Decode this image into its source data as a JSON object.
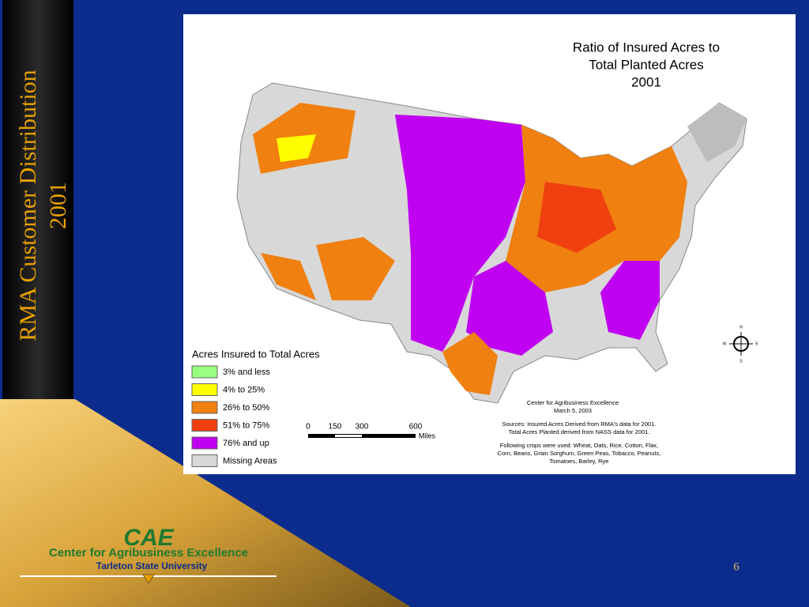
{
  "sidebar": {
    "title": "RMA Customer Distribution",
    "year": "2001"
  },
  "map": {
    "title": [
      "Ratio of Insured Acres to",
      "Total Planted Acres",
      "2001"
    ],
    "legend": {
      "title": "Acres Insured to Total Acres",
      "items": [
        {
          "label": "3% and less",
          "color": "#99ff80"
        },
        {
          "label": "4% to 25%",
          "color": "#ffff00"
        },
        {
          "label": "26% to 50%",
          "color": "#f08010"
        },
        {
          "label": "51% to 75%",
          "color": "#f04010"
        },
        {
          "label": "76% and up",
          "color": "#c000f0"
        },
        {
          "label": "Missing Areas",
          "color": "#d8d8d8"
        }
      ]
    },
    "scale": {
      "ticks": [
        0,
        150,
        300,
        600
      ],
      "unit": "Miles"
    },
    "compass": {
      "n": "N",
      "e": "E",
      "s": "S",
      "w": "W"
    },
    "credits": [
      "Center for Agribusiness Excellence",
      "March 5, 2003"
    ],
    "notes": [
      "Sources: Insured Acres Derived from RMA's data for 2001.",
      "Total Acres Planted derived from NASS data for 2001.",
      "Following crops were used: Wheat, Oats, Rice, Cotton, Flax,",
      "Corn, Beans, Grain Sorghum, Green Peas, Tobacco, Peanuts,",
      "Tomatoes, Barley, Rye"
    ]
  },
  "logo": {
    "acronym": "CAE",
    "name": "Center for Agribusiness Excellence",
    "university": "Tarleton State University"
  },
  "page_number": "6"
}
